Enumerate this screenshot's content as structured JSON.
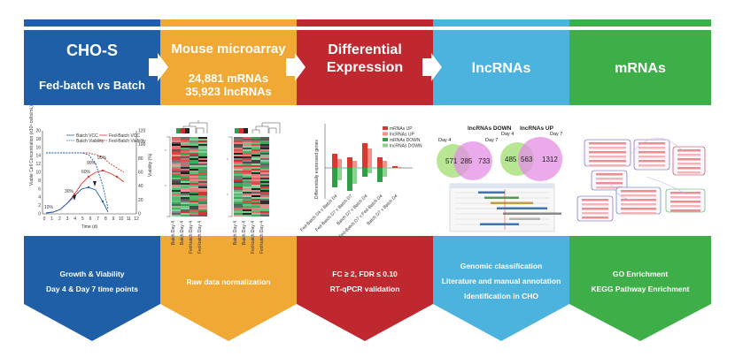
{
  "colors": {
    "blue": "#1e5fa8",
    "orange": "#f0a935",
    "red": "#c0282f",
    "cyan": "#4bb3dd",
    "green": "#3eae48"
  },
  "columns": [
    {
      "title": "CHO-S",
      "subtitle": "Fed-batch vs Batch",
      "bottom": [
        "Growth & Viability",
        "Day 4 & Day 7 time points"
      ]
    },
    {
      "title": "Mouse microarray",
      "subtitle": "24,881 mRNAs",
      "subtitle2": "35,923 lncRNAs",
      "bottom": [
        "Raw data normalization"
      ]
    },
    {
      "title": "Differential",
      "title2": "Expression",
      "bottom": [
        "FC ≥ 2, FDR ≤ 0.10",
        "RT-qPCR validation"
      ]
    },
    {
      "title": "lncRNAs",
      "bottom": [
        "Genomic classification",
        "Literature and manual annotation",
        "Identification in CHO"
      ]
    },
    {
      "title": "mRNAs",
      "bottom": [
        "GO Enrichment",
        "KEGG Pathway Enrichment"
      ]
    }
  ],
  "growth_chart": {
    "ylabel": "Viable Cell Concentration (x10⁶ cells/mL)",
    "y2label": "Viability (%)",
    "xlabel": "Time (d)",
    "legend": [
      "Batch VCC",
      "Fed-Batch VCC",
      "Batch Viability",
      "Fed-Batch Viability"
    ],
    "yticks": [
      "0",
      "2",
      "4",
      "6",
      "8",
      "10",
      "12",
      "14",
      "16",
      "18",
      "20"
    ],
    "y2ticks": [
      "0",
      "20",
      "40",
      "60",
      "80",
      "100",
      "120"
    ],
    "xticks": [
      "0",
      "1",
      "2",
      "3",
      "4",
      "5",
      "6",
      "7",
      "8",
      "9",
      "10",
      "11",
      "12"
    ],
    "annotations": [
      "30%",
      "60%",
      "90%",
      "95%",
      "10%"
    ]
  },
  "diff_chart": {
    "ylabel": "Differentially expressed genes",
    "legend": [
      "mRNAs UP",
      "lncRNAs UP",
      "mRNAs DOWN",
      "lncRNAs DOWN"
    ],
    "categories": [
      "Fed-Batch D4 v Batch D4",
      "Fed-Batch D7 v Batch D7",
      "Batch D7 v Batch D4",
      "Fed-Batch D7 v Fed-Batch D4",
      "Batch D7 v Batch D4"
    ]
  },
  "venn_down": {
    "title": "lncRNAs DOWN",
    "left_label": "Day 4",
    "right_label": "Day 7",
    "left": "571",
    "both": "285",
    "right": "733"
  },
  "venn_up": {
    "title": "lncRNAs UP",
    "left_label": "Day 4",
    "right_label": "Day 7",
    "left": "485",
    "both": "563",
    "right": "1312"
  },
  "heatmap_labels": [
    "Batch Day 4",
    "Batch Day 4",
    "Fed-batch Day 4",
    "Fed-batch Day 4"
  ]
}
